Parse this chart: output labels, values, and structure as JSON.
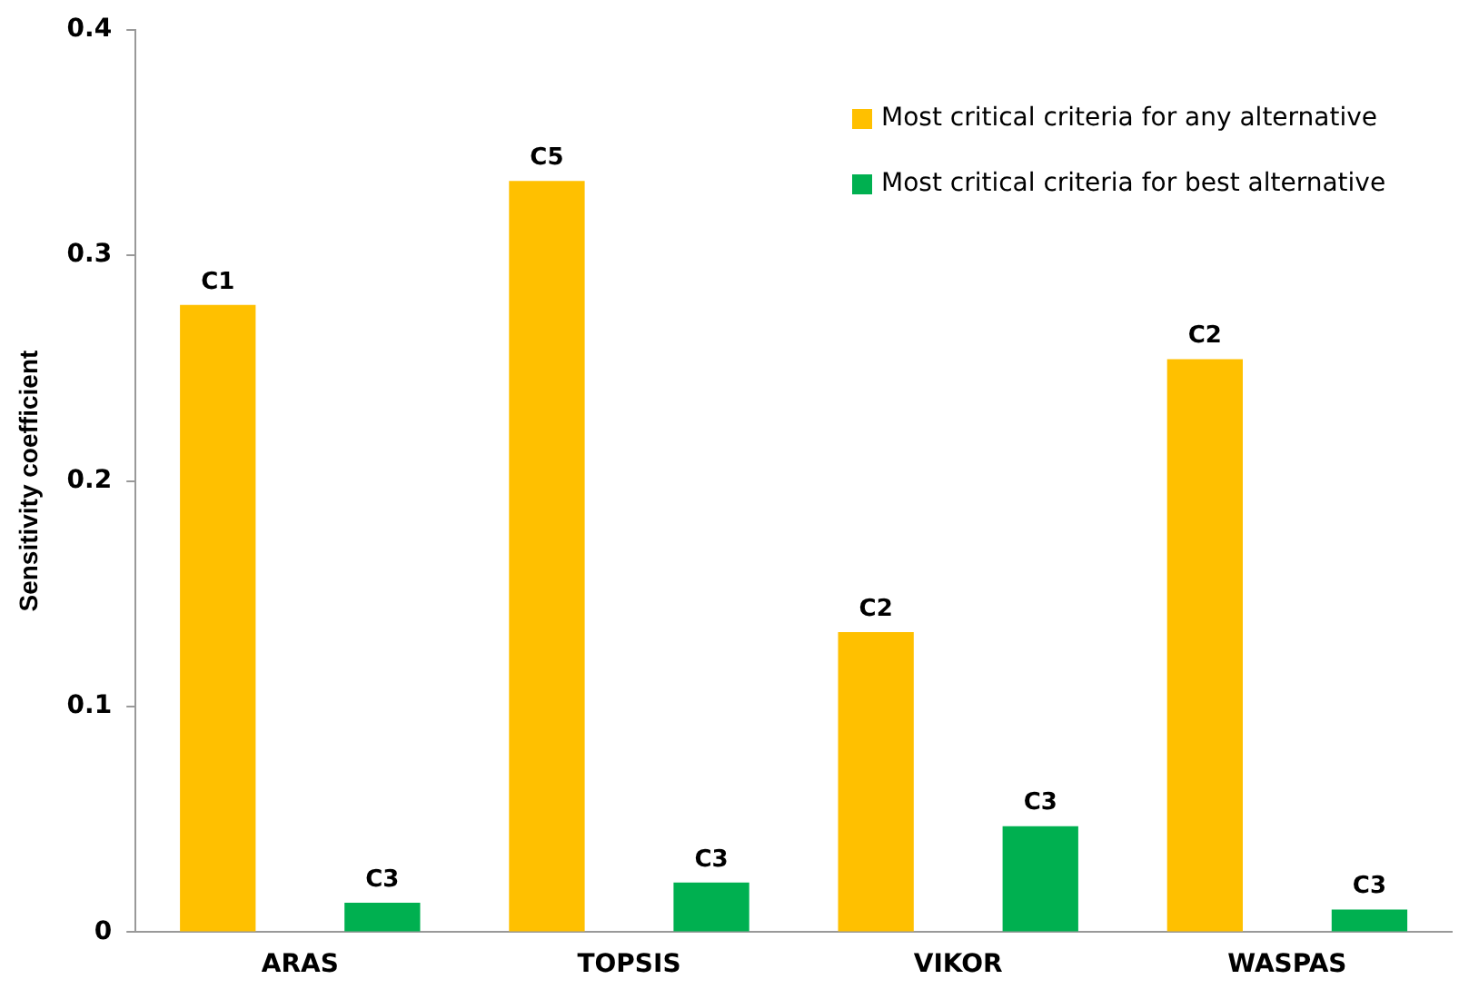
{
  "chart_data": {
    "type": "bar",
    "ylabel": "Sensitivity coefficient",
    "categories": [
      "ARAS",
      "TOPSIS",
      "VIKOR",
      "WASPAS"
    ],
    "series": [
      {
        "name": "Most critical criteria for any alternative",
        "color": "#ffc000",
        "values": [
          0.278,
          0.333,
          0.133,
          0.254
        ],
        "value_labels": [
          "C1",
          "C5",
          "C2",
          "C2"
        ]
      },
      {
        "name": "Most critical criteria for best alternative",
        "color": "#00b050",
        "values": [
          0.013,
          0.022,
          0.047,
          0.01
        ],
        "value_labels": [
          "C3",
          "C3",
          "C3",
          "C3"
        ]
      }
    ],
    "ylim": [
      0,
      0.4
    ],
    "yticks": [
      0,
      0.1,
      0.2,
      0.3,
      0.4
    ],
    "grid": false,
    "legend": "top right"
  }
}
